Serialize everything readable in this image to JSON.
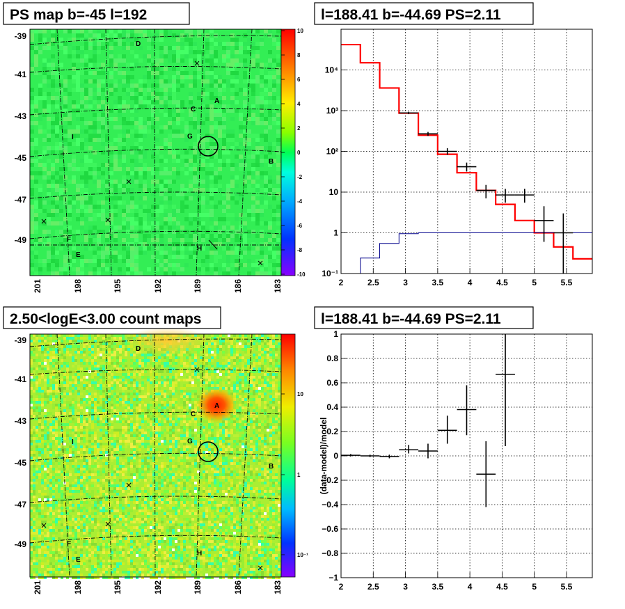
{
  "panels": {
    "tl": {
      "title": "PS map b=-45 l=192"
    },
    "tr": {
      "title": "l=188.41 b=-44.69 PS=2.11"
    },
    "bl": {
      "title": "2.50<logE<3.00 count maps"
    },
    "br": {
      "title": "l=188.41 b=-44.69 PS=2.11"
    }
  },
  "maps": {
    "x_ticks": [
      "201",
      "198",
      "195",
      "192",
      "189",
      "186",
      "183"
    ],
    "y_ticks": [
      "-39",
      "-41",
      "-43",
      "-45",
      "-47",
      "-49"
    ],
    "source_labels": [
      "A",
      "B",
      "C",
      "D",
      "E",
      "F",
      "G",
      "H",
      "I"
    ],
    "ps_colorbar_ticks": [
      "10",
      "8",
      "6",
      "4",
      "2",
      "0",
      "-2",
      "-4",
      "-6",
      "-8",
      "-10"
    ],
    "count_colorbar_ticks": [
      "10",
      "1",
      "10⁻¹"
    ]
  },
  "chart_data": [
    {
      "type": "line",
      "panel": "tr",
      "title": "l=188.41 b=-44.69 PS=2.11",
      "x_scale": "linear",
      "y_scale": "log",
      "xlim": [
        2,
        5.9
      ],
      "ylim": [
        0.1,
        100000
      ],
      "x_ticks": [
        "2",
        "2.5",
        "3",
        "3.5",
        "4",
        "4.5",
        "5",
        "5.5"
      ],
      "y_ticks": [
        "10⁻¹",
        "1",
        "10",
        "10²",
        "10³",
        "10⁴"
      ],
      "grid": true,
      "series": [
        {
          "color": "#ff0000",
          "style": "step",
          "bin_edges": [
            2.0,
            2.3,
            2.6,
            2.9,
            3.2,
            3.5,
            3.8,
            4.1,
            4.4,
            4.7,
            5.0,
            5.3,
            5.6,
            5.9
          ],
          "values": [
            42000,
            15000,
            3600,
            870,
            250,
            85,
            30,
            11,
            5,
            2,
            1,
            0.45,
            0.23
          ]
        },
        {
          "color": "#00008b",
          "style": "step",
          "bin_edges": [
            2.0,
            2.3,
            2.6,
            2.9,
            3.2,
            3.5,
            3.8,
            4.1,
            4.4,
            4.7,
            5.0,
            5.3,
            5.6,
            5.9
          ],
          "values": [
            0.1,
            0.24,
            0.55,
            0.95,
            1.0,
            1.0,
            1.0,
            1.0,
            1.0,
            1.0,
            1.0,
            1.0,
            1.0
          ]
        },
        {
          "color": "#000000",
          "style": "error",
          "points": [
            {
              "x": 3.05,
              "y": 880,
              "xerr": 0.15,
              "ylo": 820,
              "yhi": 940
            },
            {
              "x": 3.35,
              "y": 270,
              "xerr": 0.15,
              "ylo": 240,
              "yhi": 300
            },
            {
              "x": 3.65,
              "y": 100,
              "xerr": 0.15,
              "ylo": 82,
              "yhi": 120
            },
            {
              "x": 3.95,
              "y": 42,
              "xerr": 0.15,
              "ylo": 32,
              "yhi": 53
            },
            {
              "x": 4.25,
              "y": 11,
              "xerr": 0.15,
              "ylo": 7,
              "yhi": 15
            },
            {
              "x": 4.55,
              "y": 8.5,
              "xerr": 0.15,
              "ylo": 5.5,
              "yhi": 12
            },
            {
              "x": 4.85,
              "y": 8.5,
              "xerr": 0.15,
              "ylo": 5.5,
              "yhi": 12
            },
            {
              "x": 5.15,
              "y": 2,
              "xerr": 0.15,
              "ylo": 0.6,
              "yhi": 4.5
            },
            {
              "x": 5.45,
              "y": 1,
              "xerr": 0.15,
              "ylo": 0.1,
              "yhi": 3
            }
          ]
        }
      ]
    },
    {
      "type": "scatter",
      "panel": "br",
      "title": "l=188.41 b=-44.69 PS=2.11",
      "ylabel": "(data-model)/model",
      "x_scale": "linear",
      "y_scale": "linear",
      "xlim": [
        2,
        5.9
      ],
      "ylim": [
        -1,
        1
      ],
      "x_ticks": [
        "2",
        "2.5",
        "3",
        "3.5",
        "4",
        "4.5",
        "5",
        "5.5"
      ],
      "y_ticks": [
        "1",
        "0.8",
        "0.6",
        "0.4",
        "0.2",
        "0",
        "−0.2",
        "−0.4",
        "−0.6",
        "−0.8",
        "−1"
      ],
      "grid": true,
      "series": [
        {
          "color": "#000000",
          "style": "error",
          "points": [
            {
              "x": 2.15,
              "y": 0.005,
              "xerr": 0.15,
              "ylo": -0.005,
              "yhi": 0.015
            },
            {
              "x": 2.45,
              "y": 0.0,
              "xerr": 0.15,
              "ylo": -0.01,
              "yhi": 0.01
            },
            {
              "x": 2.75,
              "y": -0.005,
              "xerr": 0.15,
              "ylo": -0.02,
              "yhi": 0.01
            },
            {
              "x": 3.05,
              "y": 0.05,
              "xerr": 0.15,
              "ylo": 0.02,
              "yhi": 0.09
            },
            {
              "x": 3.35,
              "y": 0.04,
              "xerr": 0.15,
              "ylo": -0.02,
              "yhi": 0.1
            },
            {
              "x": 3.65,
              "y": 0.21,
              "xerr": 0.15,
              "ylo": 0.1,
              "yhi": 0.33
            },
            {
              "x": 3.95,
              "y": 0.38,
              "xerr": 0.15,
              "ylo": 0.17,
              "yhi": 0.58
            },
            {
              "x": 4.25,
              "y": -0.15,
              "xerr": 0.15,
              "ylo": -0.42,
              "yhi": 0.12
            },
            {
              "x": 4.55,
              "y": 0.67,
              "xerr": 0.15,
              "ylo": 0.08,
              "yhi": 1.0
            }
          ]
        }
      ]
    }
  ]
}
